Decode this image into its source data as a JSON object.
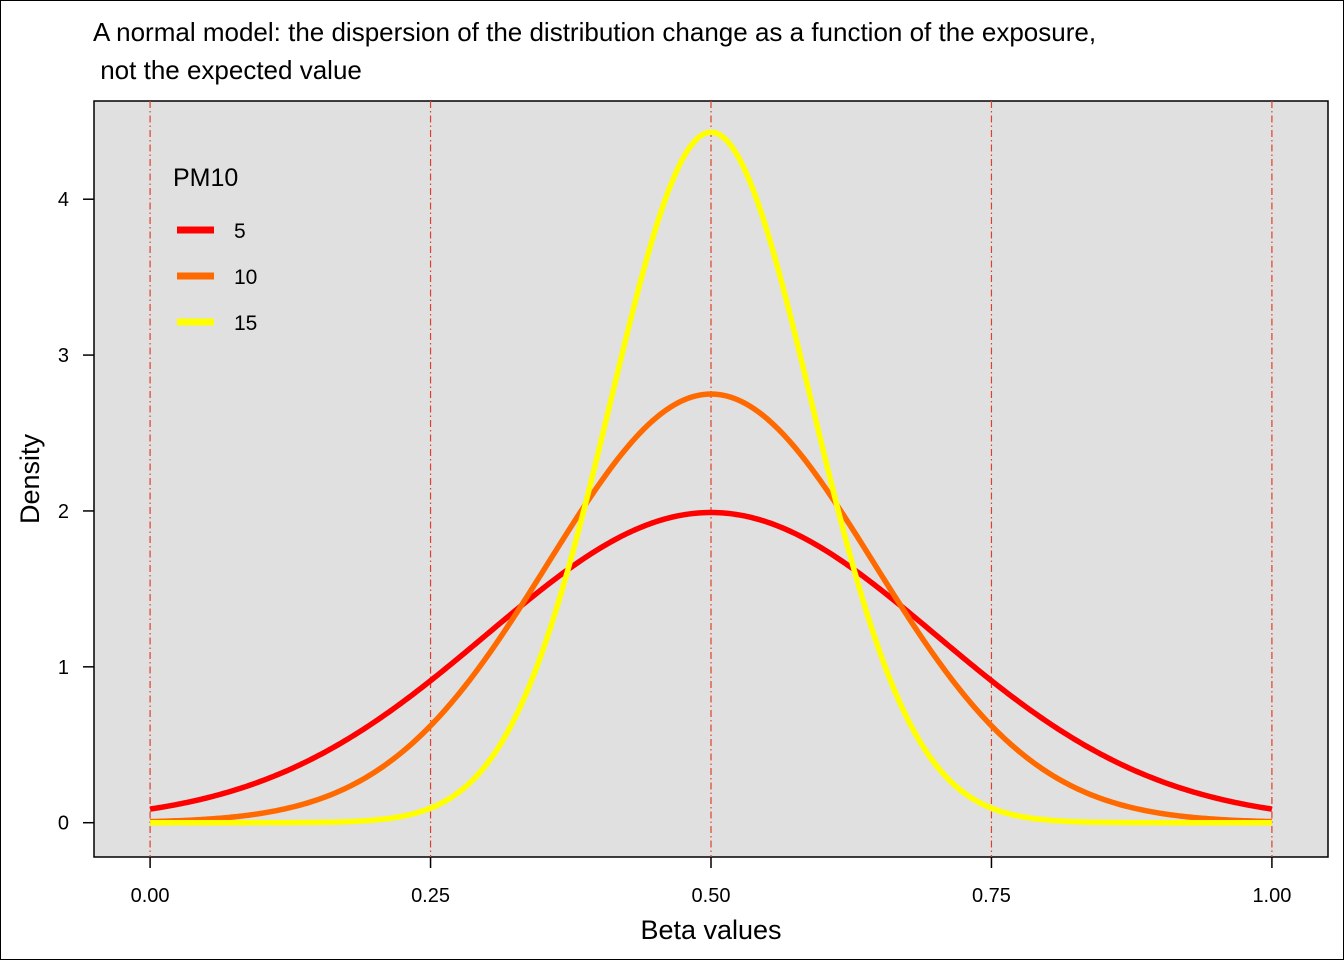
{
  "chart_data": {
    "type": "line",
    "title": "A normal model: the dispersion of the distribution change as a function of the exposure,\n not the expected value",
    "xlabel": "Beta values",
    "ylabel": "Density",
    "xlim": [
      -0.05,
      1.05
    ],
    "ylim": [
      -0.22,
      4.63
    ],
    "x_ticks": [
      0,
      0.25,
      0.5,
      0.75,
      1
    ],
    "x_tick_labels": [
      "0.00",
      "0.25",
      "0.50",
      "0.75",
      "1.00"
    ],
    "y_ticks": [
      0,
      1,
      2,
      3,
      4
    ],
    "y_tick_labels": [
      "0",
      "1",
      "2",
      "3",
      "4"
    ],
    "vertical_reference_lines": [
      0,
      0.25,
      0.5,
      0.75,
      1
    ],
    "reference_line_color": "#e0402a",
    "panel_background": "#e0e0e0",
    "grid": false,
    "legend": {
      "title": "PM10",
      "placement": "top-left"
    },
    "series": [
      {
        "name": "5",
        "color": "#ff0000",
        "mean": 0.5,
        "sd": 0.2,
        "peak_density": 1.99,
        "x": [
          0,
          0.05,
          0.1,
          0.15,
          0.2,
          0.25,
          0.3,
          0.35,
          0.4,
          0.45,
          0.5,
          0.55,
          0.6,
          0.65,
          0.7,
          0.75,
          0.8,
          0.85,
          0.9,
          0.95,
          1
        ],
        "y": [
          0.09,
          0.16,
          0.27,
          0.43,
          0.65,
          0.91,
          1.21,
          1.51,
          1.76,
          1.93,
          1.99,
          1.93,
          1.76,
          1.51,
          1.21,
          0.91,
          0.65,
          0.43,
          0.27,
          0.16,
          0.09
        ]
      },
      {
        "name": "10",
        "color": "#ff6a00",
        "mean": 0.5,
        "sd": 0.145,
        "peak_density": 2.75,
        "x": [
          0,
          0.05,
          0.1,
          0.15,
          0.2,
          0.25,
          0.3,
          0.35,
          0.4,
          0.45,
          0.5,
          0.55,
          0.6,
          0.65,
          0.7,
          0.75,
          0.8,
          0.85,
          0.9,
          0.95,
          1
        ],
        "y": [
          0.01,
          0.02,
          0.06,
          0.15,
          0.32,
          0.62,
          1.07,
          1.64,
          2.23,
          2.65,
          2.75,
          2.65,
          2.23,
          1.64,
          1.07,
          0.62,
          0.32,
          0.15,
          0.06,
          0.02,
          0.01
        ]
      },
      {
        "name": "15",
        "color": "#ffff00",
        "mean": 0.5,
        "sd": 0.09,
        "peak_density": 4.43,
        "x": [
          0,
          0.05,
          0.1,
          0.15,
          0.2,
          0.25,
          0.3,
          0.35,
          0.4,
          0.45,
          0.5,
          0.55,
          0.6,
          0.65,
          0.7,
          0.75,
          0.8,
          0.85,
          0.9,
          0.95,
          1
        ],
        "y": [
          0,
          0,
          0,
          0,
          0.02,
          0.09,
          0.37,
          1.09,
          2.38,
          3.79,
          4.43,
          3.79,
          2.38,
          1.09,
          0.37,
          0.09,
          0.02,
          0,
          0,
          0,
          0
        ]
      }
    ]
  }
}
